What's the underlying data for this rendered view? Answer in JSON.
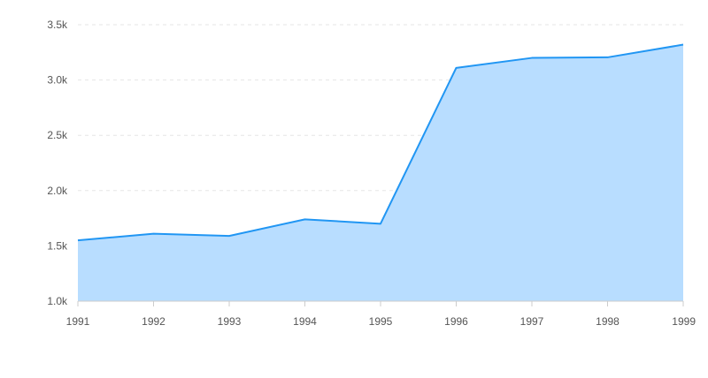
{
  "chart_data": {
    "type": "area",
    "title": "",
    "xlabel": "",
    "ylabel": "",
    "x": [
      "1991",
      "1992",
      "1993",
      "1994",
      "1995",
      "1996",
      "1997",
      "1998",
      "1999"
    ],
    "series": [
      {
        "values": [
          1550,
          1610,
          1590,
          1740,
          1700,
          3110,
          3200,
          3205,
          3320
        ]
      }
    ],
    "ylim": [
      1000,
      3500
    ],
    "yticks": [
      1000,
      1500,
      2000,
      2500,
      3000,
      3500
    ],
    "ytick_labels": [
      "1.0k",
      "1.5k",
      "2.0k",
      "2.5k",
      "3.0k",
      "3.5k"
    ],
    "grid": "horizontal dashed",
    "legend": "none",
    "colors": {
      "line": "#2196f3",
      "fill": "#b8ddff",
      "grid": "#e6e6e6",
      "axis": "#cccccc",
      "text": "#555555"
    }
  }
}
